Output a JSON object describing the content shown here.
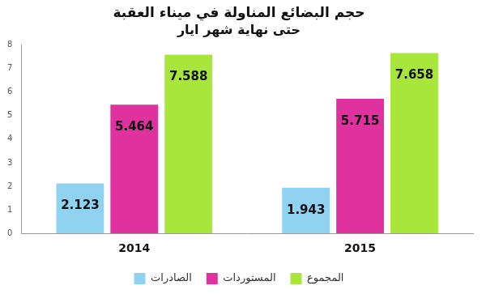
{
  "chart_data": {
    "type": "bar",
    "title": "حجم البضائع المناولة في ميناء العقبة",
    "subtitle": "حتى نهاية شهر ايار",
    "categories": [
      "2014",
      "2015"
    ],
    "series": [
      {
        "name": "الصادرات",
        "color": "#8fd3f0",
        "values": [
          2.123,
          1.943
        ]
      },
      {
        "name": "المستوردات",
        "color": "#e0329f",
        "values": [
          5.464,
          5.715
        ]
      },
      {
        "name": "المجموع",
        "color": "#a8e63c",
        "values": [
          7.588,
          7.658
        ]
      }
    ],
    "ylim": [
      0,
      8
    ],
    "yticks": [
      0,
      1,
      2,
      3,
      4,
      5,
      6,
      7,
      8
    ],
    "grid": false,
    "legend": "bottom",
    "data_labels": true
  }
}
